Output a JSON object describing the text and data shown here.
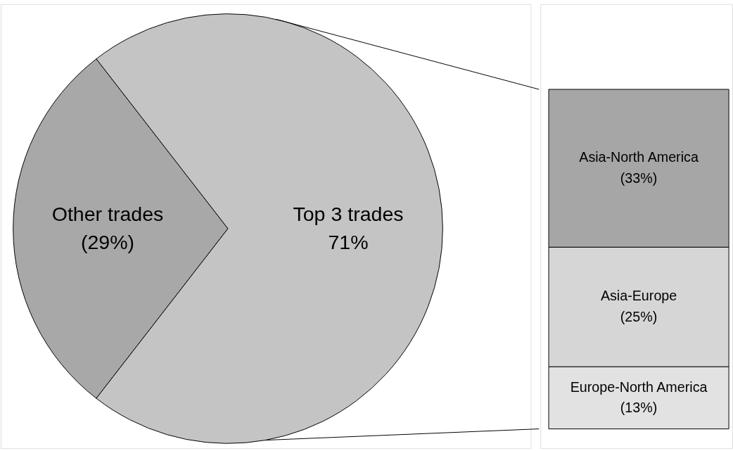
{
  "chart_data": [
    {
      "type": "pie",
      "categories": [
        "Other trades",
        "Top 3 trades"
      ],
      "values": [
        29,
        71
      ],
      "colors": [
        "#a8a8a8",
        "#c4c4c4"
      ],
      "value_labels": [
        "(29%)",
        "71%"
      ]
    },
    {
      "type": "bar",
      "stacked": true,
      "categories": [
        null
      ],
      "series": [
        {
          "name": "Europe-North America",
          "color": "#e2e2e2",
          "values": [
            13
          ],
          "value_labels": [
            "(13%)"
          ]
        },
        {
          "name": "Asia-Europe",
          "color": "#d6d6d6",
          "values": [
            25
          ],
          "value_labels": [
            "(25%)"
          ]
        },
        {
          "name": "Asia-North America",
          "color": "#a6a6a6",
          "values": [
            33
          ],
          "value_labels": [
            "(33%)"
          ]
        }
      ]
    }
  ]
}
